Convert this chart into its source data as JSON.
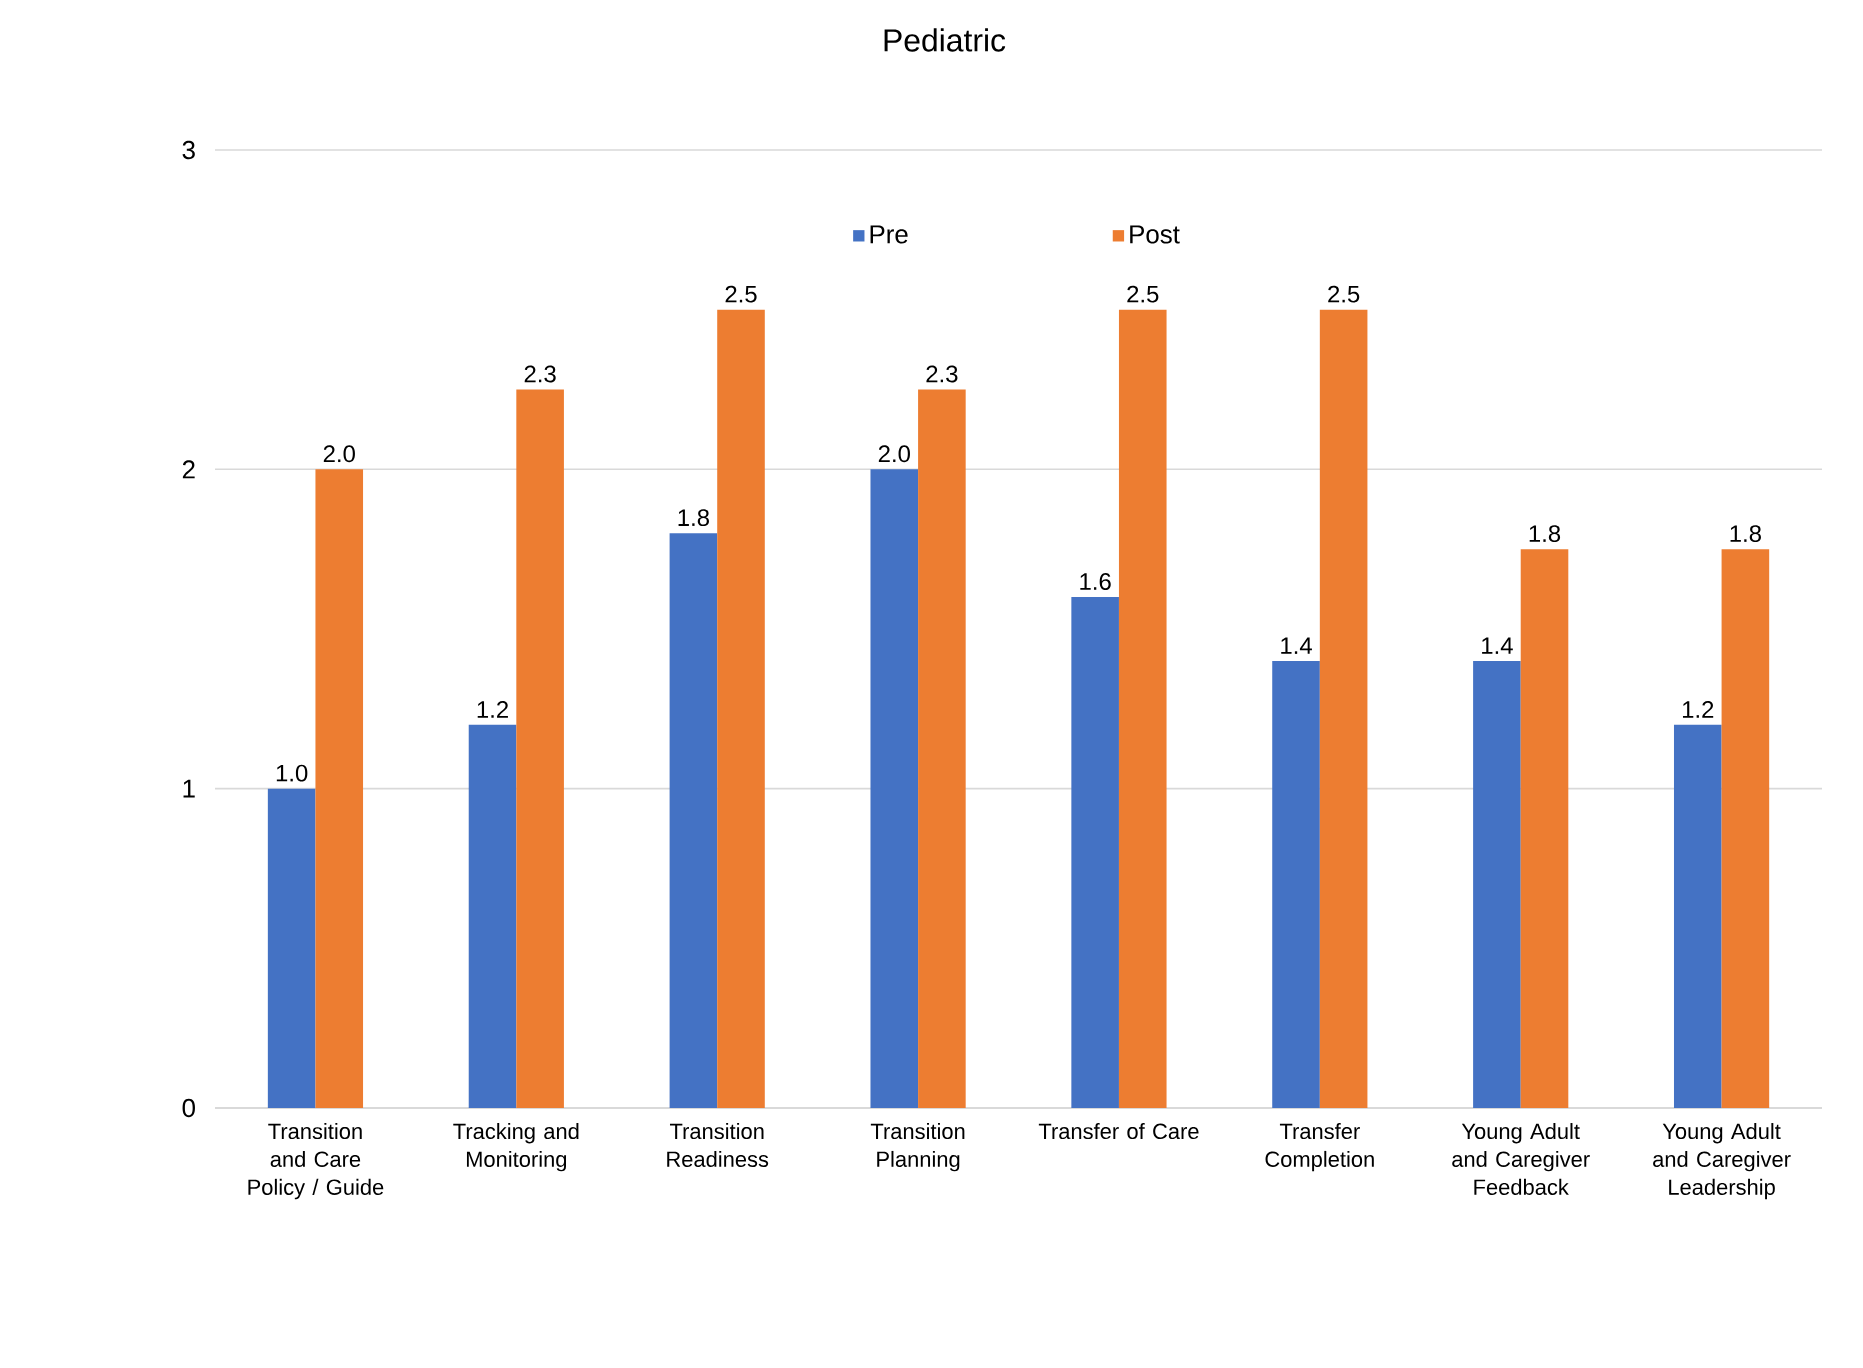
{
  "chart_data": {
    "type": "bar",
    "title": "Pediatric",
    "categories": [
      "Transition and Care Policy / Guide",
      "Tracking and Monitoring",
      "Transition Readiness",
      "Transition Planning",
      "Transfer of Care",
      "Transfer Completion",
      "Young Adult and Caregiver Feedback",
      "Young Adult and Caregiver Leadership"
    ],
    "series": [
      {
        "name": "Pre",
        "color": "#4472c4",
        "values": [
          1.0,
          1.2,
          1.8,
          2.0,
          1.6,
          1.4,
          1.4,
          1.2
        ],
        "value_labels": [
          "1.0",
          "1.2",
          "1.8",
          "2.0",
          "1.6",
          "1.4",
          "1.4",
          "1.2"
        ]
      },
      {
        "name": "Post",
        "color": "#ed7d31",
        "values": [
          2.0,
          2.25,
          2.5,
          2.25,
          2.5,
          2.5,
          1.75,
          1.75
        ],
        "value_labels": [
          "2.0",
          "2.3",
          "2.5",
          "2.3",
          "2.5",
          "2.5",
          "1.8",
          "1.8"
        ]
      }
    ],
    "ylim": [
      0,
      3
    ],
    "yticks": [
      0,
      1,
      2,
      3
    ],
    "grid": "y",
    "legend": "top"
  }
}
